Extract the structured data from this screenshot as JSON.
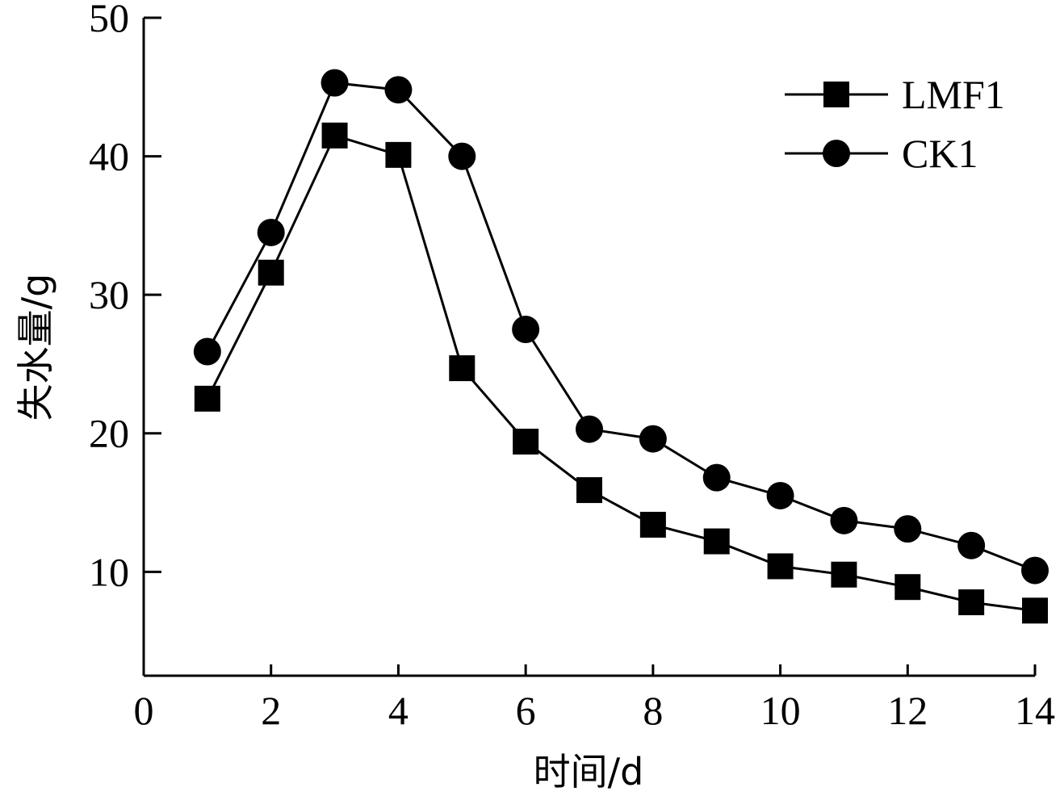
{
  "chart_data": {
    "type": "line",
    "title": "",
    "xlabel": "时间/d",
    "ylabel": "失水量/g",
    "xlim": [
      0,
      14
    ],
    "ylim": [
      2.5,
      50
    ],
    "xticks": [
      0,
      2,
      4,
      6,
      8,
      10,
      12,
      14
    ],
    "yticks": [
      10,
      20,
      30,
      40,
      50
    ],
    "grid": false,
    "legend_position": "top-right",
    "x": [
      1,
      2,
      3,
      4,
      5,
      6,
      7,
      8,
      9,
      10,
      11,
      12,
      13,
      14
    ],
    "series": [
      {
        "name": "LMF1",
        "marker": "square",
        "color": "#000000",
        "values": [
          22.5,
          31.6,
          41.5,
          40.1,
          24.7,
          19.4,
          15.9,
          13.4,
          12.2,
          10.4,
          9.8,
          8.9,
          7.8,
          7.2
        ]
      },
      {
        "name": "CK1",
        "marker": "circle",
        "color": "#000000",
        "values": [
          25.9,
          34.5,
          45.3,
          44.8,
          40.0,
          27.5,
          20.3,
          19.6,
          16.8,
          15.5,
          13.7,
          13.1,
          11.9,
          10.1
        ]
      }
    ]
  }
}
